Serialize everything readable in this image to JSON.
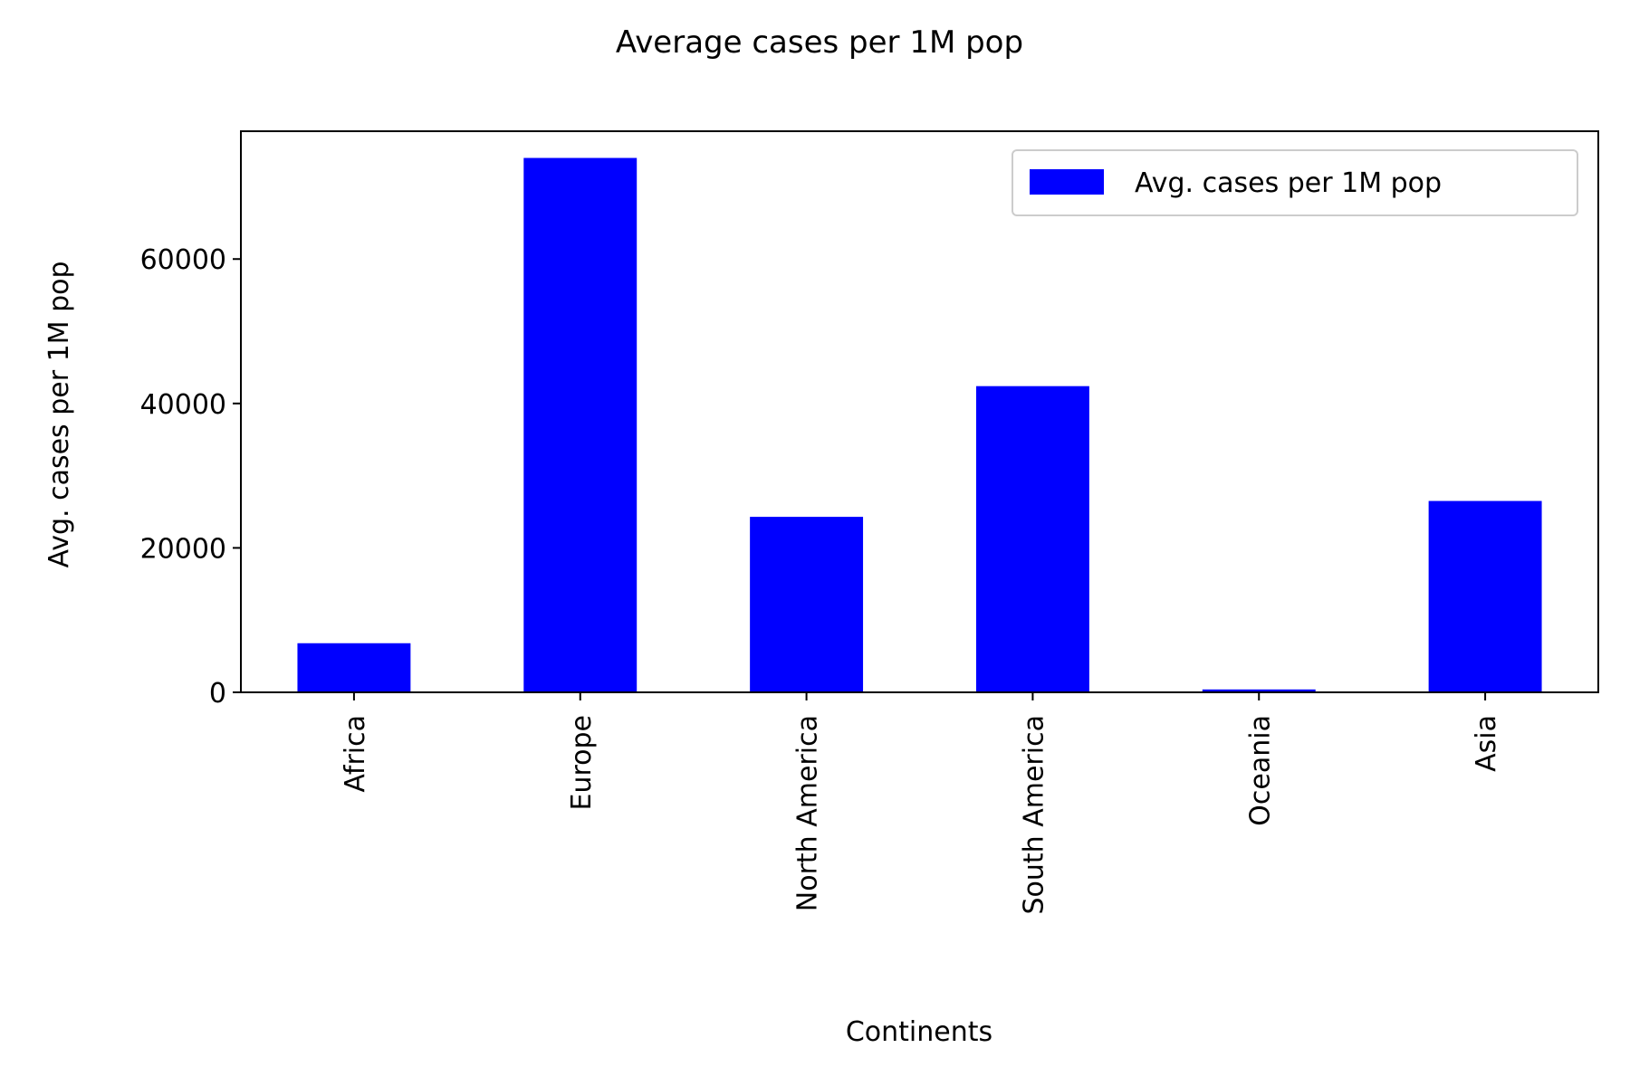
{
  "chart_data": {
    "type": "bar",
    "title": "Average cases per 1M pop",
    "xlabel": "Continents",
    "ylabel": "Avg. cases per 1M pop",
    "categories": [
      "Africa",
      "Europe",
      "North America",
      "South America",
      "Oceania",
      "Asia"
    ],
    "series": [
      {
        "name": "Avg. cases per 1M pop",
        "values": [
          6800,
          74000,
          24300,
          42400,
          400,
          26500
        ]
      }
    ],
    "ylim": [
      0,
      77700
    ],
    "yticks": [
      0,
      20000,
      40000,
      60000
    ],
    "ytick_labels": [
      "0",
      "20000",
      "40000",
      "60000"
    ],
    "xtick_rotation": "vertical",
    "legend": {
      "position": "top-right",
      "entries": [
        "Avg. cases per 1M pop"
      ]
    },
    "grid": false,
    "colors": {
      "bar": "#0000ff",
      "axis": "#000000",
      "legend_border": "#cccccc",
      "background": "#ffffff"
    }
  }
}
